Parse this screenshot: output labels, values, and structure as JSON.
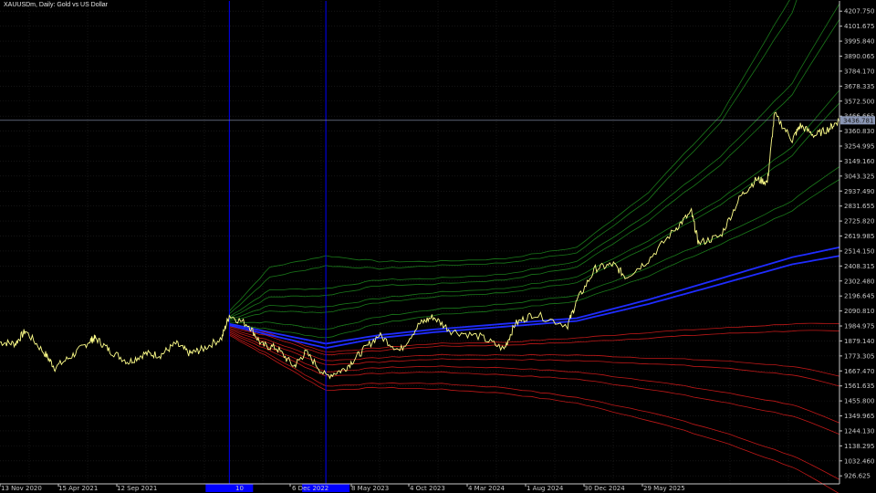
{
  "window": {
    "title": "XAUUSDm, Daily:  Gold vs US Dollar"
  },
  "colors": {
    "background": "#000000",
    "grid": "#222222",
    "axis": "#c8c8c8",
    "price": "#ffff8a",
    "vertical_marker": "#0000ff",
    "anchor_label_bg": "#0000ff",
    "blue_band": "#1f2cff",
    "green_band": "#1a7a1a",
    "red_band": "#c01818",
    "crosshair": "#8a96b4",
    "price_label_bg": "#8a96b4"
  },
  "chart_data": {
    "type": "line",
    "symbol": "XAUUSDm",
    "timeframe": "Daily",
    "x_tick_labels": [
      "13 Nov 2020",
      "15 Apr 2021",
      "12 Sep 2021",
      "10",
      "6 Dec 2022",
      "8 May 2023",
      "4 Oct 2023",
      "4 Mar 2024",
      "1 Aug 2024",
      "30 Dec 2024",
      "29 May 2025"
    ],
    "y_tick_labels": [
      "4207.750",
      "4101.675",
      "3995.840",
      "3890.065",
      "3784.170",
      "3678.335",
      "3572.500",
      "3466.665",
      "3360.830",
      "3254.995",
      "3149.160",
      "3043.325",
      "2937.490",
      "2831.655",
      "2725.820",
      "2619.985",
      "2514.150",
      "2408.315",
      "2302.480",
      "2196.645",
      "2090.810",
      "1984.975",
      "1879.140",
      "1773.305",
      "1667.470",
      "1561.635",
      "1455.800",
      "1349.965",
      "1244.130",
      "1138.295",
      "1032.460",
      "926.625"
    ],
    "y_range": [
      870,
      4280
    ],
    "x_range": [
      "2020-11-13",
      "2025-09-05"
    ],
    "current_price_label": "3436.781",
    "current_price": 3436.78,
    "vertical_markers": [
      "2022-03-08",
      "2022-09-26"
    ],
    "anchor_date_labels": [
      "",
      ""
    ],
    "price_series": {
      "x": [
        "2020-11-13",
        "2020-12-15",
        "2021-01-05",
        "2021-02-15",
        "2021-03-08",
        "2021-04-15",
        "2021-05-20",
        "2021-06-01",
        "2021-07-01",
        "2021-08-09",
        "2021-09-12",
        "2021-10-15",
        "2021-11-16",
        "2021-12-15",
        "2022-01-10",
        "2022-02-20",
        "2022-03-08",
        "2022-04-18",
        "2022-05-15",
        "2022-06-15",
        "2022-07-21",
        "2022-08-15",
        "2022-09-26",
        "2022-11-04",
        "2022-12-06",
        "2023-01-15",
        "2023-02-28",
        "2023-04-10",
        "2023-05-08",
        "2023-06-15",
        "2023-08-15",
        "2023-10-04",
        "2023-10-27",
        "2023-12-04",
        "2024-02-14",
        "2024-03-04",
        "2024-04-12",
        "2024-05-20",
        "2024-06-15",
        "2024-08-01",
        "2024-09-26",
        "2024-10-30",
        "2024-11-14",
        "2024-12-30",
        "2025-02-10",
        "2025-03-15",
        "2025-04-07",
        "2025-04-22",
        "2025-05-29",
        "2025-06-15",
        "2025-07-15",
        "2025-08-15",
        "2025-09-05"
      ],
      "y": [
        1870,
        1860,
        1950,
        1790,
        1690,
        1780,
        1880,
        1900,
        1810,
        1730,
        1790,
        1780,
        1860,
        1790,
        1820,
        1900,
        2060,
        1990,
        1850,
        1830,
        1700,
        1800,
        1630,
        1680,
        1790,
        1920,
        1810,
        2000,
        2050,
        1950,
        1910,
        1820,
        2000,
        2070,
        1990,
        2160,
        2390,
        2420,
        2330,
        2450,
        2670,
        2790,
        2570,
        2620,
        2900,
        3020,
        3000,
        3480,
        3300,
        3400,
        3330,
        3380,
        3440
      ]
    },
    "bands": {
      "x": [
        "2022-03-08",
        "2022-06-01",
        "2022-09-26",
        "2023-01-15",
        "2023-05-08",
        "2023-10-04",
        "2024-03-04",
        "2024-08-01",
        "2024-12-30",
        "2025-05-29",
        "2025-09-05"
      ],
      "green": [
        [
          2090,
          2400,
          2480,
          2440,
          2440,
          2460,
          2540,
          2930,
          3470,
          4320,
          5200
        ],
        [
          2070,
          2330,
          2410,
          2390,
          2410,
          2430,
          2500,
          2880,
          3420,
          4200,
          5100
        ],
        [
          2050,
          2240,
          2250,
          2310,
          2320,
          2350,
          2440,
          2780,
          3180,
          3700,
          4260
        ],
        [
          2040,
          2190,
          2200,
          2270,
          2280,
          2310,
          2400,
          2730,
          3120,
          3620,
          4150
        ],
        [
          2030,
          2130,
          2120,
          2180,
          2220,
          2250,
          2330,
          2590,
          2880,
          3250,
          3650
        ],
        [
          2020,
          2090,
          2080,
          2150,
          2190,
          2220,
          2290,
          2550,
          2840,
          3190,
          3560
        ],
        [
          2010,
          2010,
          1960,
          2050,
          2100,
          2140,
          2200,
          2400,
          2620,
          2870,
          3110
        ],
        [
          2000,
          1960,
          1900,
          2000,
          2060,
          2100,
          2160,
          2340,
          2560,
          2800,
          3020
        ]
      ],
      "blue": [
        [
          2000,
          1940,
          1860,
          1920,
          1960,
          2000,
          2040,
          2170,
          2320,
          2470,
          2540
        ],
        [
          1990,
          1920,
          1830,
          1900,
          1940,
          1980,
          2020,
          2140,
          2280,
          2420,
          2480
        ]
      ],
      "red": [
        [
          1990,
          1930,
          1800,
          1830,
          1860,
          1870,
          1900,
          1940,
          1970,
          2000,
          2000
        ],
        [
          1980,
          1910,
          1780,
          1810,
          1840,
          1850,
          1870,
          1900,
          1930,
          1950,
          1950
        ],
        [
          1970,
          1880,
          1740,
          1760,
          1780,
          1780,
          1780,
          1760,
          1740,
          1700,
          1630
        ],
        [
          1960,
          1860,
          1710,
          1730,
          1750,
          1750,
          1740,
          1720,
          1690,
          1640,
          1560
        ],
        [
          1950,
          1830,
          1660,
          1690,
          1700,
          1690,
          1660,
          1600,
          1520,
          1430,
          1300
        ],
        [
          1940,
          1810,
          1630,
          1650,
          1660,
          1640,
          1610,
          1540,
          1450,
          1350,
          1220
        ],
        [
          1930,
          1780,
          1560,
          1580,
          1580,
          1550,
          1480,
          1380,
          1240,
          1070,
          900
        ],
        [
          1920,
          1760,
          1530,
          1550,
          1540,
          1510,
          1440,
          1320,
          1170,
          990,
          800
        ]
      ]
    }
  }
}
